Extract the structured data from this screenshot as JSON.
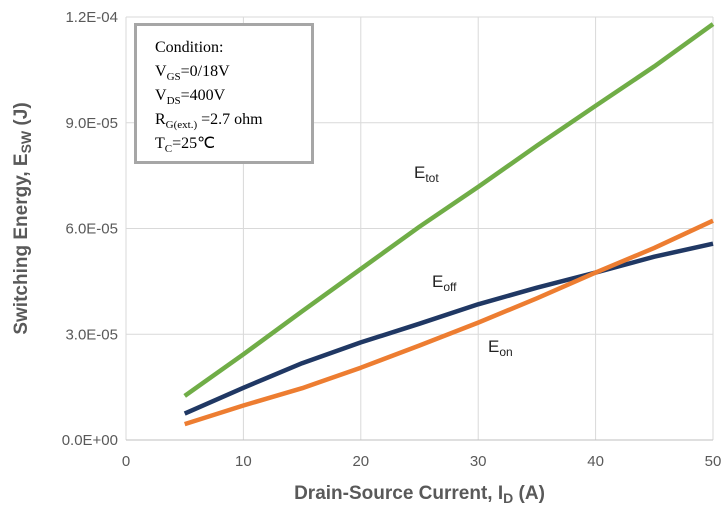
{
  "chart_data": {
    "type": "line",
    "xlabel": {
      "main": "Drain-Source Current, I",
      "sub": "D",
      "tail": " (A)"
    },
    "ylabel": {
      "main": "Switching Energy, E",
      "sub": "SW",
      "tail": " (J)"
    },
    "xlim": [
      0,
      50
    ],
    "ylim": [
      0,
      0.00012
    ],
    "xticks": [
      0,
      10,
      20,
      30,
      40,
      50
    ],
    "xtick_labels": [
      "0",
      "10",
      "20",
      "30",
      "40",
      "50"
    ],
    "yticks": [
      0,
      3e-05,
      6e-05,
      9e-05,
      0.00012
    ],
    "ytick_labels": [
      "0.0E+00",
      "3.0E-05",
      "6.0E-05",
      "9.0E-05",
      "1.2E-04"
    ],
    "grid": true,
    "series": [
      {
        "name": "E",
        "name_sub": "tot",
        "color": "#70ad47",
        "x": [
          5,
          10,
          15,
          20,
          25,
          30,
          35,
          40,
          45,
          50
        ],
        "y": [
          1.25e-05,
          2.43e-05,
          3.65e-05,
          4.85e-05,
          6.05e-05,
          7.18e-05,
          8.35e-05,
          9.48e-05,
          0.000106,
          0.000118
        ]
      },
      {
        "name": "E",
        "name_sub": "off",
        "color": "#203864",
        "x": [
          5,
          10,
          15,
          20,
          25,
          30,
          35,
          40,
          45,
          50
        ],
        "y": [
          7.5e-06,
          1.48e-05,
          2.18e-05,
          2.77e-05,
          3.3e-05,
          3.85e-05,
          4.32e-05,
          4.75e-05,
          5.2e-05,
          5.57e-05
        ]
      },
      {
        "name": "E",
        "name_sub": "on",
        "color": "#ed7d31",
        "x": [
          5,
          10,
          15,
          20,
          25,
          30,
          35,
          40,
          45,
          50
        ],
        "y": [
          4.5e-06,
          9.8e-06,
          1.47e-05,
          2.05e-05,
          2.68e-05,
          3.33e-05,
          4.02e-05,
          4.75e-05,
          5.45e-05,
          6.22e-05
        ]
      }
    ],
    "annotation": {
      "lines": [
        {
          "main": "Condition:",
          "sub": "",
          "tail": ""
        },
        {
          "main": "V",
          "sub": "GS",
          "tail": "=0/18V"
        },
        {
          "main": "V",
          "sub": "DS",
          "tail": "=400V"
        },
        {
          "main": "R",
          "sub": "G(ext.)",
          "tail": " =2.7 ohm"
        },
        {
          "main": "T",
          "sub": "C",
          "tail": "=25℃"
        }
      ]
    }
  }
}
